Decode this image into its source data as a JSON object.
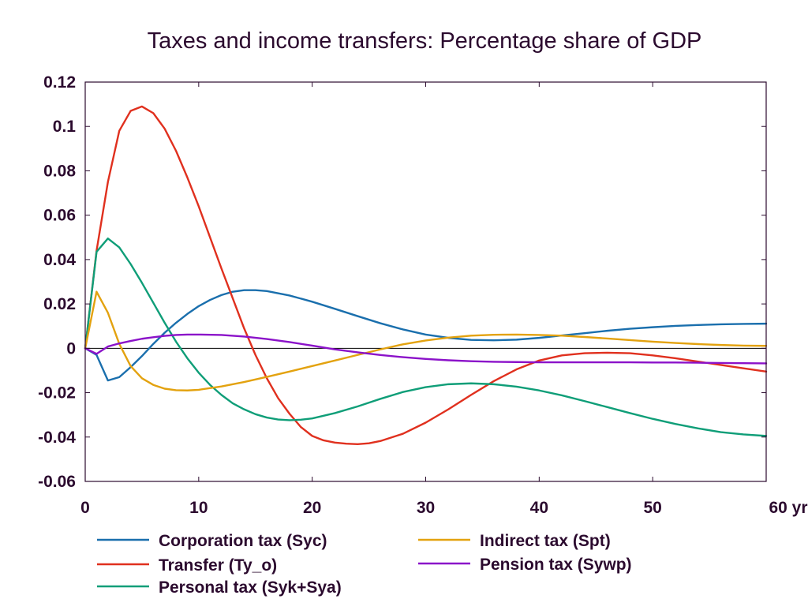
{
  "chart_data": {
    "type": "line",
    "title": "Taxes and income transfers: Percentage share of GDP",
    "xlabel": "",
    "ylabel": "",
    "xlim": [
      0,
      60
    ],
    "ylim": [
      -0.06,
      0.12
    ],
    "x_unit_label": "yr",
    "x_ticks": [
      0,
      10,
      20,
      30,
      40,
      50,
      60
    ],
    "x_tick_labels": [
      "0",
      "10",
      "20",
      "30",
      "40",
      "50",
      "60 yr"
    ],
    "y_ticks": [
      -0.06,
      -0.04,
      -0.02,
      0,
      0.02,
      0.04,
      0.06,
      0.08,
      0.1,
      0.12
    ],
    "y_tick_labels": [
      "-0.06",
      "-0.04",
      "-0.02",
      "0",
      "0.02",
      "0.04",
      "0.06",
      "0.08",
      "0.1",
      "0.12"
    ],
    "grid": false,
    "zero_line": true,
    "legend_position": "bottom",
    "series": [
      {
        "name": "Corporation tax (Syc)",
        "color": "#1a6fad",
        "points": [
          [
            0,
            0
          ],
          [
            1,
            -0.003
          ],
          [
            2,
            -0.0145
          ],
          [
            3,
            -0.013
          ],
          [
            4,
            -0.0085
          ],
          [
            5,
            -0.0035
          ],
          [
            6,
            0.002
          ],
          [
            7,
            0.007
          ],
          [
            8,
            0.0115
          ],
          [
            9,
            0.0155
          ],
          [
            10,
            0.019
          ],
          [
            11,
            0.0218
          ],
          [
            12,
            0.024
          ],
          [
            13,
            0.0255
          ],
          [
            14,
            0.0262
          ],
          [
            15,
            0.0262
          ],
          [
            16,
            0.0258
          ],
          [
            18,
            0.0238
          ],
          [
            20,
            0.021
          ],
          [
            22,
            0.0178
          ],
          [
            24,
            0.0145
          ],
          [
            26,
            0.0113
          ],
          [
            28,
            0.0085
          ],
          [
            30,
            0.0062
          ],
          [
            32,
            0.0047
          ],
          [
            34,
            0.0038
          ],
          [
            36,
            0.0036
          ],
          [
            38,
            0.0039
          ],
          [
            40,
            0.0047
          ],
          [
            42,
            0.0058
          ],
          [
            44,
            0.0068
          ],
          [
            46,
            0.0079
          ],
          [
            48,
            0.0088
          ],
          [
            50,
            0.0095
          ],
          [
            52,
            0.0101
          ],
          [
            54,
            0.0105
          ],
          [
            56,
            0.0108
          ],
          [
            58,
            0.011
          ],
          [
            60,
            0.0111
          ]
        ]
      },
      {
        "name": "Transfer (Ty_o)",
        "color": "#e0301e",
        "points": [
          [
            0,
            0
          ],
          [
            1,
            0.044
          ],
          [
            2,
            0.075
          ],
          [
            3,
            0.098
          ],
          [
            4,
            0.107
          ],
          [
            5,
            0.109
          ],
          [
            6,
            0.106
          ],
          [
            7,
            0.099
          ],
          [
            8,
            0.089
          ],
          [
            9,
            0.077
          ],
          [
            10,
            0.064
          ],
          [
            11,
            0.05
          ],
          [
            12,
            0.036
          ],
          [
            13,
            0.0225
          ],
          [
            14,
            0.009
          ],
          [
            15,
            -0.003
          ],
          [
            16,
            -0.0135
          ],
          [
            17,
            -0.0225
          ],
          [
            18,
            -0.0295
          ],
          [
            19,
            -0.0355
          ],
          [
            20,
            -0.0395
          ],
          [
            21,
            -0.0415
          ],
          [
            22,
            -0.0425
          ],
          [
            23,
            -0.043
          ],
          [
            24,
            -0.0432
          ],
          [
            25,
            -0.0428
          ],
          [
            26,
            -0.0418
          ],
          [
            28,
            -0.0385
          ],
          [
            30,
            -0.0335
          ],
          [
            32,
            -0.0275
          ],
          [
            34,
            -0.021
          ],
          [
            36,
            -0.0148
          ],
          [
            38,
            -0.0095
          ],
          [
            40,
            -0.0055
          ],
          [
            42,
            -0.0032
          ],
          [
            44,
            -0.0022
          ],
          [
            46,
            -0.002
          ],
          [
            48,
            -0.0022
          ],
          [
            50,
            -0.0032
          ],
          [
            52,
            -0.0045
          ],
          [
            54,
            -0.006
          ],
          [
            56,
            -0.0075
          ],
          [
            58,
            -0.009
          ],
          [
            60,
            -0.0105
          ]
        ]
      },
      {
        "name": "Personal tax (Syk+Sya)",
        "color": "#0f9e78",
        "points": [
          [
            0,
            0
          ],
          [
            1,
            0.0435
          ],
          [
            2,
            0.0495
          ],
          [
            3,
            0.0455
          ],
          [
            4,
            0.038
          ],
          [
            5,
            0.0295
          ],
          [
            6,
            0.0205
          ],
          [
            7,
            0.0115
          ],
          [
            8,
            0.003
          ],
          [
            9,
            -0.0045
          ],
          [
            10,
            -0.011
          ],
          [
            11,
            -0.0165
          ],
          [
            12,
            -0.021
          ],
          [
            13,
            -0.0248
          ],
          [
            14,
            -0.0275
          ],
          [
            15,
            -0.0297
          ],
          [
            16,
            -0.0312
          ],
          [
            17,
            -0.0321
          ],
          [
            18,
            -0.0324
          ],
          [
            19,
            -0.0322
          ],
          [
            20,
            -0.0316
          ],
          [
            22,
            -0.0292
          ],
          [
            24,
            -0.0262
          ],
          [
            26,
            -0.0228
          ],
          [
            28,
            -0.0197
          ],
          [
            30,
            -0.0175
          ],
          [
            32,
            -0.0162
          ],
          [
            34,
            -0.0158
          ],
          [
            36,
            -0.0162
          ],
          [
            38,
            -0.0173
          ],
          [
            40,
            -0.019
          ],
          [
            42,
            -0.0212
          ],
          [
            44,
            -0.0238
          ],
          [
            46,
            -0.0265
          ],
          [
            48,
            -0.0292
          ],
          [
            50,
            -0.0318
          ],
          [
            52,
            -0.0341
          ],
          [
            54,
            -0.0361
          ],
          [
            56,
            -0.0378
          ],
          [
            58,
            -0.0388
          ],
          [
            60,
            -0.0395
          ]
        ]
      },
      {
        "name": "Indirect tax (Spt)",
        "color": "#e3a20f",
        "points": [
          [
            0,
            0
          ],
          [
            1,
            0.0255
          ],
          [
            2,
            0.016
          ],
          [
            3,
            0.002
          ],
          [
            4,
            -0.008
          ],
          [
            5,
            -0.0135
          ],
          [
            6,
            -0.0165
          ],
          [
            7,
            -0.0182
          ],
          [
            8,
            -0.0189
          ],
          [
            9,
            -0.019
          ],
          [
            10,
            -0.0187
          ],
          [
            12,
            -0.0172
          ],
          [
            14,
            -0.0152
          ],
          [
            16,
            -0.0129
          ],
          [
            18,
            -0.0105
          ],
          [
            20,
            -0.008
          ],
          [
            22,
            -0.0055
          ],
          [
            24,
            -0.003
          ],
          [
            26,
            -0.0005
          ],
          [
            28,
            0.0018
          ],
          [
            30,
            0.0035
          ],
          [
            32,
            0.0048
          ],
          [
            34,
            0.0057
          ],
          [
            36,
            0.0061
          ],
          [
            38,
            0.0062
          ],
          [
            40,
            0.006
          ],
          [
            42,
            0.0057
          ],
          [
            44,
            0.0051
          ],
          [
            46,
            0.0044
          ],
          [
            48,
            0.0037
          ],
          [
            50,
            0.003
          ],
          [
            52,
            0.0024
          ],
          [
            54,
            0.0019
          ],
          [
            56,
            0.0015
          ],
          [
            58,
            0.0012
          ],
          [
            60,
            0.0011
          ]
        ]
      },
      {
        "name": "Pension tax (Sywp)",
        "color": "#8b12c9",
        "points": [
          [
            0,
            0
          ],
          [
            1,
            -0.0025
          ],
          [
            2,
            0.0008
          ],
          [
            3,
            0.0022
          ],
          [
            4,
            0.0033
          ],
          [
            5,
            0.0043
          ],
          [
            6,
            0.005
          ],
          [
            7,
            0.0056
          ],
          [
            8,
            0.006
          ],
          [
            9,
            0.0062
          ],
          [
            10,
            0.0062
          ],
          [
            12,
            0.006
          ],
          [
            14,
            0.0053
          ],
          [
            16,
            0.0042
          ],
          [
            18,
            0.0028
          ],
          [
            20,
            0.0012
          ],
          [
            22,
            -0.0005
          ],
          [
            24,
            -0.0018
          ],
          [
            26,
            -0.003
          ],
          [
            28,
            -0.004
          ],
          [
            30,
            -0.0048
          ],
          [
            32,
            -0.0054
          ],
          [
            34,
            -0.0058
          ],
          [
            36,
            -0.0061
          ],
          [
            38,
            -0.0062
          ],
          [
            40,
            -0.0063
          ],
          [
            42,
            -0.0063
          ],
          [
            44,
            -0.0063
          ],
          [
            46,
            -0.0063
          ],
          [
            48,
            -0.0063
          ],
          [
            50,
            -0.0064
          ],
          [
            52,
            -0.0064
          ],
          [
            54,
            -0.0065
          ],
          [
            56,
            -0.0066
          ],
          [
            58,
            -0.0067
          ],
          [
            60,
            -0.0068
          ]
        ]
      }
    ]
  }
}
